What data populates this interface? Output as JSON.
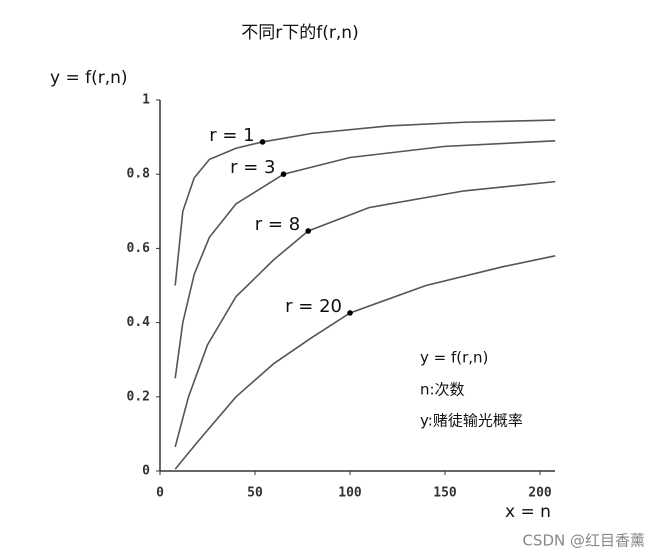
{
  "chart_data": {
    "type": "line",
    "title": "不同r下的f(r,n)",
    "y_label": "y = f(r,n)",
    "x_label": "x = n",
    "xlim": [
      0,
      210
    ],
    "ylim": [
      0,
      1
    ],
    "xticks": [
      0,
      50,
      100,
      150,
      200
    ],
    "yticks": [
      0,
      0.2,
      0.4,
      0.6,
      0.8,
      1
    ],
    "grid": false,
    "series": [
      {
        "name": "r = 1",
        "color": "#555555",
        "x": [
          8,
          12,
          18,
          26,
          40,
          54,
          80,
          120,
          160,
          208
        ],
        "values": [
          0.5,
          0.7,
          0.79,
          0.84,
          0.87,
          0.887,
          0.91,
          0.93,
          0.94,
          0.946
        ],
        "marker": {
          "x": 54,
          "y": 0.887
        }
      },
      {
        "name": "r = 3",
        "color": "#555555",
        "x": [
          8,
          12,
          18,
          26,
          40,
          65,
          100,
          150,
          208
        ],
        "values": [
          0.25,
          0.4,
          0.53,
          0.63,
          0.72,
          0.8,
          0.845,
          0.875,
          0.89
        ],
        "marker": {
          "x": 65,
          "y": 0.8
        }
      },
      {
        "name": "r = 8",
        "color": "#555555",
        "x": [
          8,
          15,
          25,
          40,
          60,
          78,
          110,
          160,
          208
        ],
        "values": [
          0.065,
          0.2,
          0.34,
          0.47,
          0.57,
          0.647,
          0.71,
          0.755,
          0.78
        ],
        "marker": {
          "x": 78,
          "y": 0.647
        }
      },
      {
        "name": "r = 20",
        "color": "#555555",
        "x": [
          8,
          20,
          40,
          60,
          80,
          100,
          140,
          180,
          208
        ],
        "values": [
          0.005,
          0.08,
          0.2,
          0.29,
          0.36,
          0.426,
          0.5,
          0.55,
          0.58
        ],
        "marker": {
          "x": 100,
          "y": 0.426
        }
      }
    ],
    "annotations": [
      "y = f(r,n)",
      "n:次数",
      "y:赌徒输光概率"
    ],
    "watermark": "CSDN @红目香薰"
  }
}
